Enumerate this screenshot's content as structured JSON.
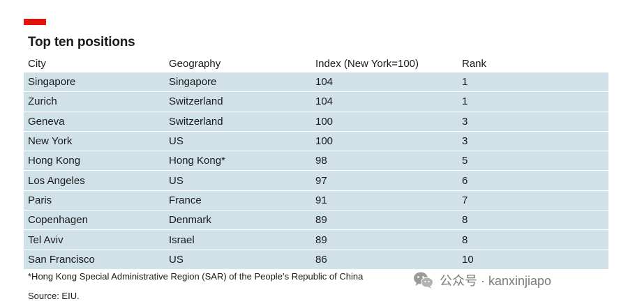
{
  "title": "Top ten positions",
  "columns": [
    "City",
    "Geography",
    "Index (New York=100)",
    "Rank"
  ],
  "rows": [
    [
      "Singapore",
      "Singapore",
      "104",
      "1"
    ],
    [
      "Zurich",
      "Switzerland",
      "104",
      "1"
    ],
    [
      "Geneva",
      "Switzerland",
      "100",
      "3"
    ],
    [
      "New York",
      "US",
      "100",
      "3"
    ],
    [
      "Hong Kong",
      "Hong Kong*",
      "98",
      "5"
    ],
    [
      "Los Angeles",
      "US",
      "97",
      "6"
    ],
    [
      "Paris",
      "France",
      "91",
      "7"
    ],
    [
      "Copenhagen",
      "Denmark",
      "89",
      "8"
    ],
    [
      "Tel Aviv",
      "Israel",
      "89",
      "8"
    ],
    [
      "San Francisco",
      "US",
      "86",
      "10"
    ]
  ],
  "footnote": "*Hong Kong Special Administrative Region (SAR) of the People’s Republic of China",
  "source": "Source: EIU.",
  "watermark": {
    "text": "公众号 · kanxinjiapo",
    "icon": "wechat-icon"
  },
  "colors": {
    "accent": "#e3120b",
    "row_background": "#d1e1e8"
  }
}
